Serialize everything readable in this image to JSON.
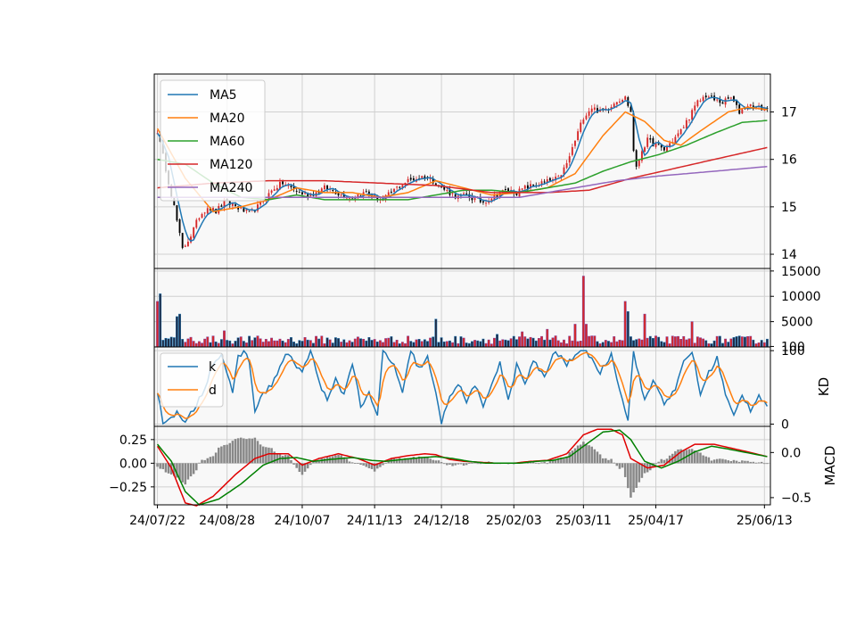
{
  "chart_data": {
    "type": "candlestick-with-indicators",
    "x_tick_labels": [
      "24/07/22",
      "24/08/28",
      "24/10/07",
      "24/11/13",
      "24/12/18",
      "25/02/03",
      "25/03/11",
      "25/04/17",
      "25/06/13"
    ],
    "x_tick_index": [
      0,
      25,
      52,
      78,
      102,
      128,
      153,
      179,
      218
    ],
    "n_days": 220,
    "price_panel": {
      "ylim": [
        13.7,
        17.8
      ],
      "y_ticks": [
        14,
        15,
        16,
        17
      ],
      "legend": [
        "MA5",
        "MA20",
        "MA60",
        "MA120",
        "MA240"
      ],
      "legend_position": "upper-left",
      "close_anchors": [
        [
          0,
          16.6
        ],
        [
          3,
          15.8
        ],
        [
          6,
          15.0
        ],
        [
          9,
          14.1
        ],
        [
          12,
          14.4
        ],
        [
          15,
          14.8
        ],
        [
          18,
          15.0
        ],
        [
          21,
          14.9
        ],
        [
          24,
          15.1
        ],
        [
          27,
          15.05
        ],
        [
          30,
          14.95
        ],
        [
          33,
          14.85
        ],
        [
          36,
          15.0
        ],
        [
          39,
          15.2
        ],
        [
          42,
          15.4
        ],
        [
          45,
          15.5
        ],
        [
          48,
          15.4
        ],
        [
          51,
          15.3
        ],
        [
          54,
          15.25
        ],
        [
          57,
          15.3
        ],
        [
          60,
          15.4
        ],
        [
          63,
          15.35
        ],
        [
          66,
          15.25
        ],
        [
          69,
          15.2
        ],
        [
          72,
          15.25
        ],
        [
          75,
          15.3
        ],
        [
          78,
          15.2
        ],
        [
          81,
          15.15
        ],
        [
          84,
          15.3
        ],
        [
          87,
          15.45
        ],
        [
          90,
          15.55
        ],
        [
          93,
          15.6
        ],
        [
          96,
          15.65
        ],
        [
          99,
          15.55
        ],
        [
          102,
          15.4
        ],
        [
          105,
          15.3
        ],
        [
          108,
          15.2
        ],
        [
          111,
          15.25
        ],
        [
          114,
          15.15
        ],
        [
          117,
          15.1
        ],
        [
          120,
          15.2
        ],
        [
          123,
          15.3
        ],
        [
          126,
          15.35
        ],
        [
          129,
          15.3
        ],
        [
          132,
          15.4
        ],
        [
          135,
          15.45
        ],
        [
          138,
          15.5
        ],
        [
          141,
          15.55
        ],
        [
          144,
          15.6
        ],
        [
          147,
          15.9
        ],
        [
          150,
          16.4
        ],
        [
          153,
          16.9
        ],
        [
          156,
          17.1
        ],
        [
          159,
          17.0
        ],
        [
          162,
          17.1
        ],
        [
          165,
          17.25
        ],
        [
          168,
          17.3
        ],
        [
          170,
          17.0
        ],
        [
          171,
          16.2
        ],
        [
          172,
          15.8
        ],
        [
          174,
          16.2
        ],
        [
          176,
          16.4
        ],
        [
          179,
          16.3
        ],
        [
          182,
          16.2
        ],
        [
          185,
          16.4
        ],
        [
          188,
          16.6
        ],
        [
          191,
          16.9
        ],
        [
          194,
          17.2
        ],
        [
          197,
          17.35
        ],
        [
          200,
          17.25
        ],
        [
          203,
          17.2
        ],
        [
          206,
          17.3
        ],
        [
          209,
          17.0
        ],
        [
          212,
          17.15
        ],
        [
          215,
          17.1
        ],
        [
          219,
          17.05
        ]
      ],
      "series": [
        {
          "name": "MA5",
          "color": "#1f77b4"
        },
        {
          "name": "MA20",
          "color": "#ff7f0e",
          "anchors": [
            [
              0,
              16.65
            ],
            [
              10,
              15.6
            ],
            [
              20,
              14.9
            ],
            [
              30,
              15.0
            ],
            [
              40,
              15.15
            ],
            [
              50,
              15.4
            ],
            [
              60,
              15.3
            ],
            [
              70,
              15.3
            ],
            [
              80,
              15.2
            ],
            [
              90,
              15.3
            ],
            [
              100,
              15.55
            ],
            [
              110,
              15.4
            ],
            [
              120,
              15.25
            ],
            [
              130,
              15.3
            ],
            [
              140,
              15.4
            ],
            [
              150,
              15.7
            ],
            [
              160,
              16.5
            ],
            [
              168,
              17.0
            ],
            [
              175,
              16.8
            ],
            [
              182,
              16.4
            ],
            [
              188,
              16.3
            ],
            [
              195,
              16.6
            ],
            [
              205,
              17.0
            ],
            [
              212,
              17.1
            ],
            [
              219,
              17.05
            ]
          ]
        },
        {
          "name": "MA60",
          "color": "#2ca02c",
          "anchors": [
            [
              0,
              16.0
            ],
            [
              10,
              15.9
            ],
            [
              20,
              15.5
            ],
            [
              30,
              15.2
            ],
            [
              40,
              15.15
            ],
            [
              50,
              15.25
            ],
            [
              60,
              15.15
            ],
            [
              70,
              15.15
            ],
            [
              80,
              15.15
            ],
            [
              90,
              15.15
            ],
            [
              100,
              15.25
            ],
            [
              110,
              15.35
            ],
            [
              120,
              15.35
            ],
            [
              130,
              15.3
            ],
            [
              140,
              15.4
            ],
            [
              150,
              15.5
            ],
            [
              160,
              15.75
            ],
            [
              170,
              15.95
            ],
            [
              180,
              16.1
            ],
            [
              190,
              16.3
            ],
            [
              200,
              16.55
            ],
            [
              210,
              16.78
            ],
            [
              219,
              16.82
            ]
          ]
        },
        {
          "name": "MA120",
          "color": "#d62728",
          "anchors": [
            [
              0,
              15.4
            ],
            [
              20,
              15.5
            ],
            [
              40,
              15.55
            ],
            [
              60,
              15.55
            ],
            [
              80,
              15.5
            ],
            [
              100,
              15.45
            ],
            [
              120,
              15.3
            ],
            [
              140,
              15.3
            ],
            [
              155,
              15.35
            ],
            [
              170,
              15.6
            ],
            [
              185,
              15.8
            ],
            [
              200,
              16.0
            ],
            [
              219,
              16.25
            ]
          ]
        },
        {
          "name": "MA240",
          "color": "#9467bd",
          "anchors": [
            [
              0,
              15.2
            ],
            [
              30,
              15.2
            ],
            [
              60,
              15.2
            ],
            [
              90,
              15.2
            ],
            [
              110,
              15.2
            ],
            [
              130,
              15.2
            ],
            [
              150,
              15.4
            ],
            [
              165,
              15.55
            ],
            [
              180,
              15.65
            ],
            [
              200,
              15.75
            ],
            [
              219,
              15.85
            ]
          ]
        }
      ]
    },
    "volume_panel": {
      "y_ticks": [
        100,
        5000,
        10000,
        15000
      ],
      "ylim": [
        0,
        15500
      ],
      "spikes": [
        [
          0,
          9000
        ],
        [
          1,
          10500
        ],
        [
          7,
          6000
        ],
        [
          8,
          6500
        ],
        [
          24,
          3200
        ],
        [
          100,
          5500
        ],
        [
          122,
          2500
        ],
        [
          131,
          3000
        ],
        [
          140,
          3500
        ],
        [
          150,
          4500
        ],
        [
          153,
          14000
        ],
        [
          154,
          4500
        ],
        [
          168,
          9000
        ],
        [
          169,
          7000
        ],
        [
          175,
          6500
        ],
        [
          192,
          5000
        ]
      ]
    },
    "kd_panel": {
      "y_ticks": [
        0,
        100
      ],
      "ylim": [
        -3,
        105
      ],
      "ylabel": "KD",
      "legend": [
        "k",
        "d"
      ],
      "legend_position": "upper-left",
      "k_anchors": [
        [
          0,
          45
        ],
        [
          2,
          0
        ],
        [
          4,
          10
        ],
        [
          7,
          15
        ],
        [
          10,
          0
        ],
        [
          13,
          20
        ],
        [
          17,
          50
        ],
        [
          20,
          85
        ],
        [
          23,
          95
        ],
        [
          25,
          70
        ],
        [
          27,
          40
        ],
        [
          29,
          90
        ],
        [
          31,
          100
        ],
        [
          33,
          85
        ],
        [
          35,
          20
        ],
        [
          38,
          40
        ],
        [
          42,
          60
        ],
        [
          46,
          95
        ],
        [
          49,
          85
        ],
        [
          52,
          70
        ],
        [
          55,
          100
        ],
        [
          58,
          60
        ],
        [
          61,
          30
        ],
        [
          64,
          60
        ],
        [
          67,
          40
        ],
        [
          70,
          85
        ],
        [
          73,
          25
        ],
        [
          76,
          40
        ],
        [
          79,
          10
        ],
        [
          81,
          100
        ],
        [
          85,
          80
        ],
        [
          88,
          40
        ],
        [
          91,
          100
        ],
        [
          94,
          75
        ],
        [
          97,
          90
        ],
        [
          100,
          40
        ],
        [
          102,
          0
        ],
        [
          105,
          40
        ],
        [
          108,
          55
        ],
        [
          111,
          30
        ],
        [
          114,
          55
        ],
        [
          117,
          20
        ],
        [
          120,
          55
        ],
        [
          123,
          85
        ],
        [
          126,
          30
        ],
        [
          129,
          80
        ],
        [
          132,
          55
        ],
        [
          135,
          85
        ],
        [
          139,
          65
        ],
        [
          143,
          100
        ],
        [
          147,
          80
        ],
        [
          151,
          100
        ],
        [
          155,
          95
        ],
        [
          159,
          70
        ],
        [
          163,
          95
        ],
        [
          167,
          35
        ],
        [
          169,
          5
        ],
        [
          171,
          100
        ],
        [
          175,
          30
        ],
        [
          178,
          60
        ],
        [
          182,
          30
        ],
        [
          186,
          45
        ],
        [
          189,
          85
        ],
        [
          192,
          100
        ],
        [
          195,
          40
        ],
        [
          198,
          70
        ],
        [
          201,
          90
        ],
        [
          204,
          40
        ],
        [
          207,
          10
        ],
        [
          210,
          40
        ],
        [
          213,
          20
        ],
        [
          216,
          40
        ],
        [
          219,
          25
        ]
      ],
      "series": [
        {
          "name": "k",
          "color": "#1f77b4"
        },
        {
          "name": "d",
          "color": "#ff7f0e"
        }
      ]
    },
    "macd_panel": {
      "left_y_ticks": [
        0.25,
        0.0,
        -0.25
      ],
      "left_ylim": [
        -0.44,
        0.39
      ],
      "right_y_ticks": [
        0.0,
        -0.5
      ],
      "right_ylim": [
        -0.58,
        0.29
      ],
      "ylabel": "MACD",
      "red_anchors": [
        [
          0,
          0.18
        ],
        [
          5,
          -0.05
        ],
        [
          10,
          -0.42
        ],
        [
          14,
          -0.45
        ],
        [
          20,
          -0.35
        ],
        [
          28,
          -0.12
        ],
        [
          35,
          0.05
        ],
        [
          40,
          0.1
        ],
        [
          47,
          0.1
        ],
        [
          52,
          -0.02
        ],
        [
          58,
          0.05
        ],
        [
          65,
          0.1
        ],
        [
          72,
          0.05
        ],
        [
          78,
          -0.02
        ],
        [
          84,
          0.05
        ],
        [
          90,
          0.08
        ],
        [
          96,
          0.1
        ],
        [
          100,
          0.09
        ],
        [
          105,
          0.04
        ],
        [
          110,
          0.02
        ],
        [
          116,
          0.01
        ],
        [
          122,
          0.0
        ],
        [
          128,
          0.0
        ],
        [
          134,
          0.02
        ],
        [
          140,
          0.03
        ],
        [
          147,
          0.1
        ],
        [
          153,
          0.3
        ],
        [
          158,
          0.36
        ],
        [
          163,
          0.36
        ],
        [
          167,
          0.3
        ],
        [
          170,
          0.05
        ],
        [
          176,
          -0.05
        ],
        [
          182,
          -0.02
        ],
        [
          188,
          0.12
        ],
        [
          193,
          0.2
        ],
        [
          200,
          0.2
        ],
        [
          206,
          0.16
        ],
        [
          212,
          0.12
        ],
        [
          219,
          0.07
        ]
      ],
      "green_anchors": [
        [
          0,
          0.2
        ],
        [
          5,
          0.02
        ],
        [
          10,
          -0.3
        ],
        [
          15,
          -0.44
        ],
        [
          22,
          -0.38
        ],
        [
          30,
          -0.22
        ],
        [
          38,
          -0.02
        ],
        [
          44,
          0.05
        ],
        [
          50,
          0.06
        ],
        [
          56,
          0.02
        ],
        [
          62,
          0.04
        ],
        [
          70,
          0.06
        ],
        [
          77,
          0.03
        ],
        [
          82,
          0.02
        ],
        [
          88,
          0.04
        ],
        [
          95,
          0.06
        ],
        [
          100,
          0.07
        ],
        [
          106,
          0.05
        ],
        [
          112,
          0.02
        ],
        [
          118,
          0.0
        ],
        [
          124,
          0.0
        ],
        [
          130,
          0.0
        ],
        [
          136,
          0.02
        ],
        [
          142,
          0.03
        ],
        [
          148,
          0.07
        ],
        [
          154,
          0.2
        ],
        [
          160,
          0.33
        ],
        [
          166,
          0.35
        ],
        [
          170,
          0.25
        ],
        [
          175,
          0.02
        ],
        [
          181,
          -0.05
        ],
        [
          187,
          0.02
        ],
        [
          193,
          0.12
        ],
        [
          199,
          0.18
        ],
        [
          205,
          0.15
        ],
        [
          212,
          0.11
        ],
        [
          219,
          0.07
        ]
      ]
    }
  }
}
